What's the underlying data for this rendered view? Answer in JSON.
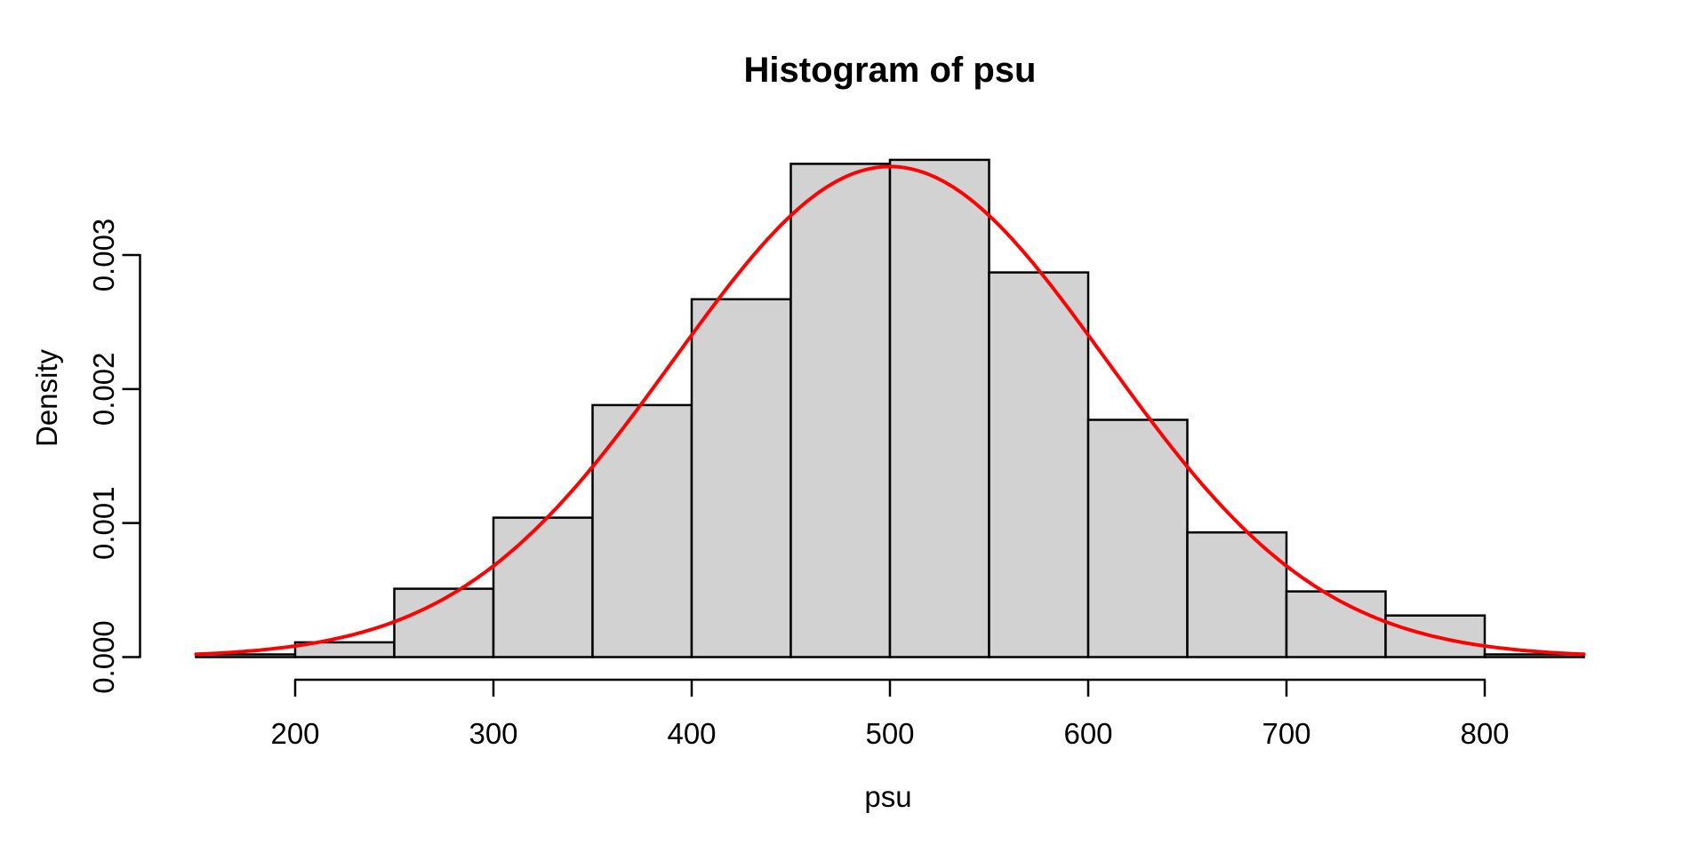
{
  "figure": {
    "background": "#FFFFFF"
  },
  "chart_data": {
    "type": "bar",
    "subtype": "histogram-with-density-curve",
    "title": "Histogram of psu",
    "xlabel": "psu",
    "ylabel": "Density",
    "grid": false,
    "legend": false,
    "xlim": [
      122,
      878
    ],
    "ylim": [
      0,
      0.00373
    ],
    "bin_width": 50,
    "bin_edges": [
      150,
      200,
      250,
      300,
      350,
      400,
      450,
      500,
      550,
      600,
      650,
      700,
      750,
      800,
      850
    ],
    "densities": [
      2e-05,
      0.00011,
      0.00051,
      0.00104,
      0.00188,
      0.00267,
      0.00368,
      0.00371,
      0.00287,
      0.00177,
      0.00093,
      0.00049,
      0.00031,
      2e-05
    ],
    "x_ticks": [
      200,
      300,
      400,
      500,
      600,
      700,
      800
    ],
    "y_tick_labels": [
      "0.000",
      "0.001",
      "0.002",
      "0.003"
    ],
    "y_tick_values": [
      0,
      0.001,
      0.002,
      0.003
    ],
    "overlay_curve": {
      "type": "normal-density",
      "mean": 500,
      "sd": 109,
      "x_range": [
        150,
        850
      ],
      "color": "#FF0000",
      "line_width": 4
    },
    "colors": {
      "bar_fill": "#D2D2D2",
      "bar_border": "#000000",
      "axis": "#000000",
      "text": "#000000"
    }
  }
}
